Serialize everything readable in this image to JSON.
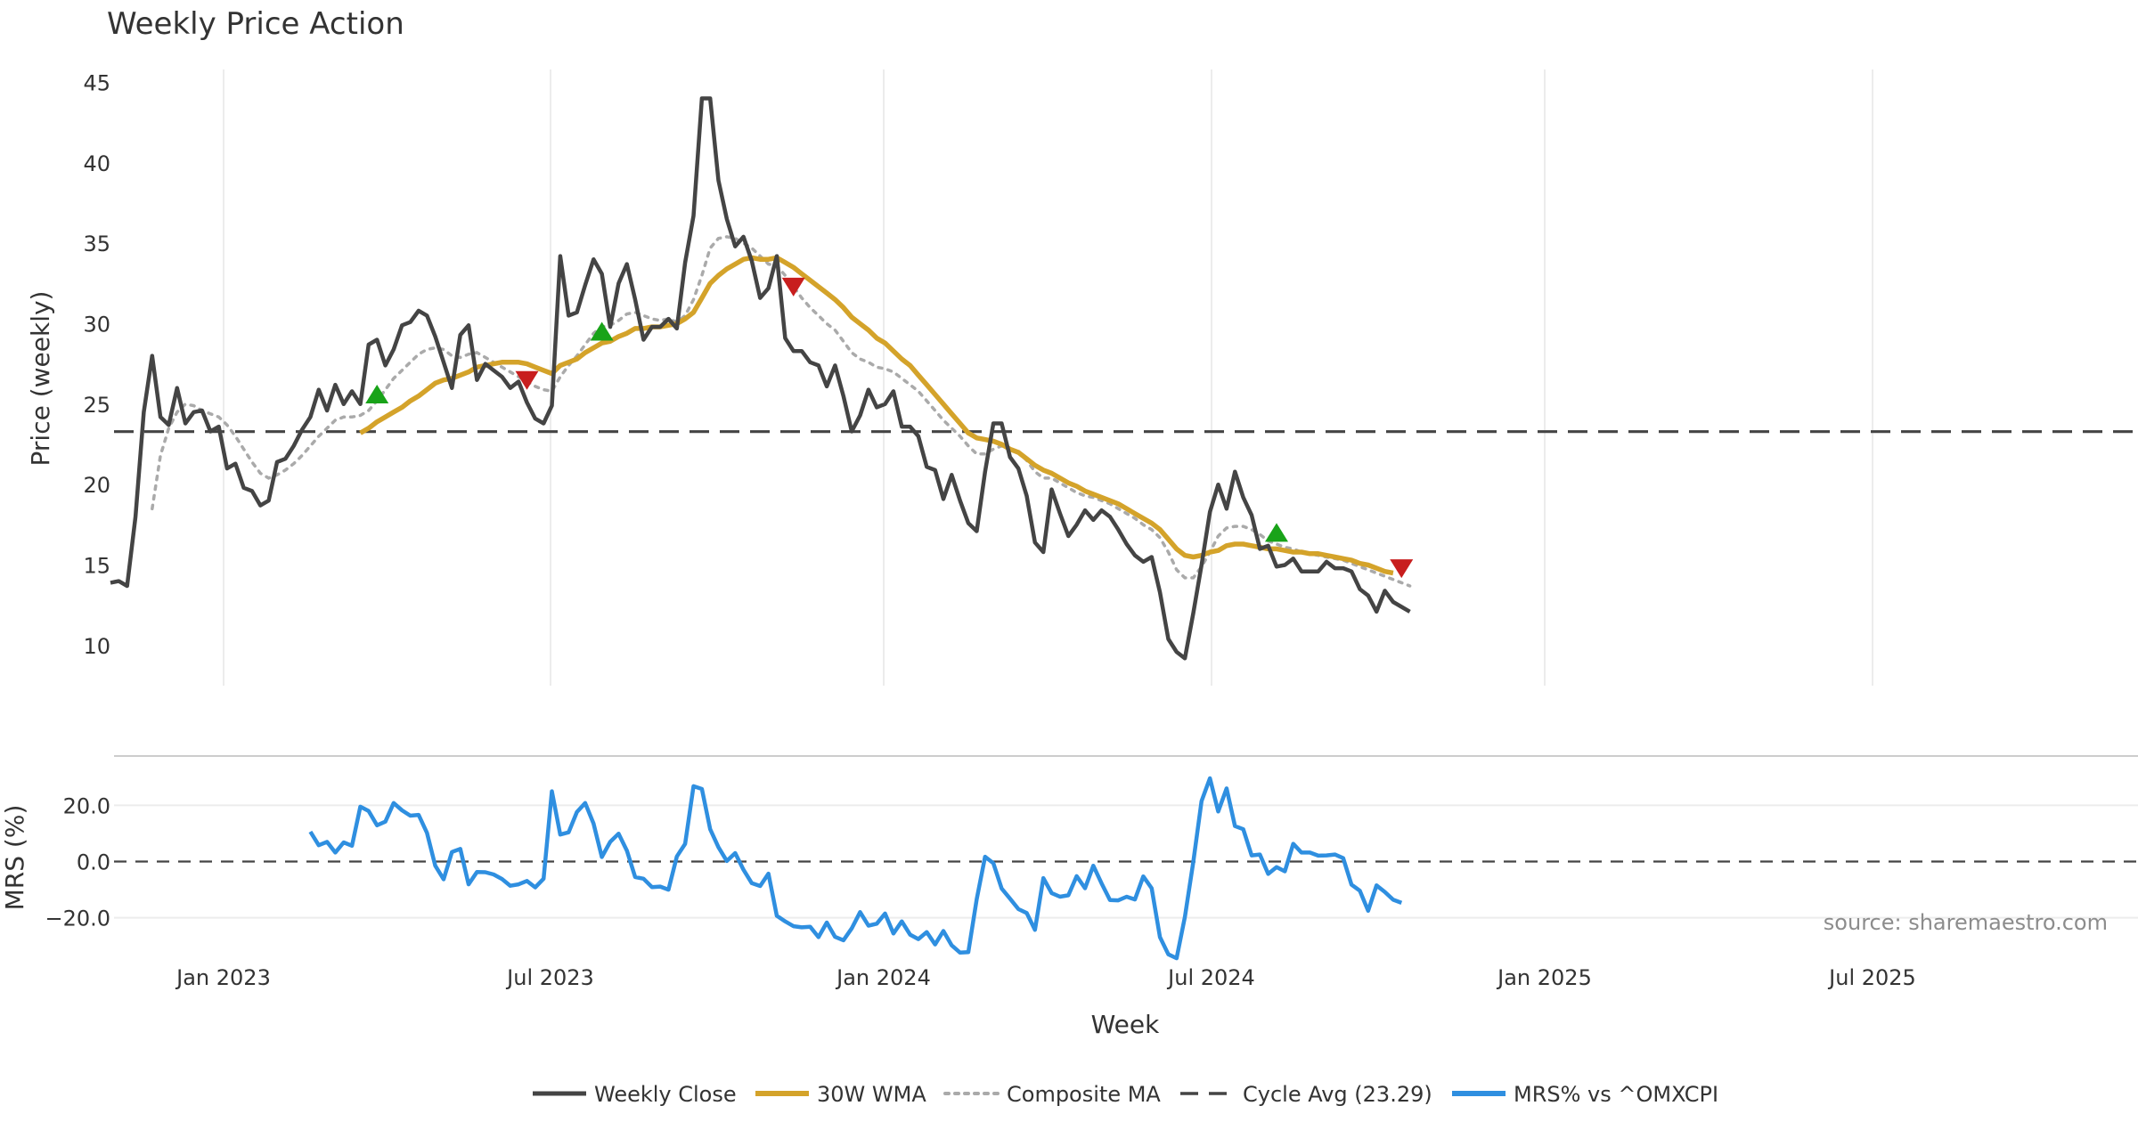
{
  "chart_data": {
    "type": "line",
    "title": "Weekly Price Action",
    "xlabel": "Week",
    "source": "source: sharemaestro.com",
    "x_ticks": [
      "Jan 2023",
      "Jul 2023",
      "Jan 2024",
      "Jul 2024",
      "Jan 2025",
      "Jul 2025"
    ],
    "price_panel": {
      "ylabel": "Price (weekly)",
      "yticks": [
        10,
        15,
        20,
        25,
        30,
        35,
        40,
        45
      ],
      "ylim": [
        7.5,
        45.8
      ],
      "cycle_avg": 23.29,
      "weekly_close": [
        13.9,
        14.0,
        13.7,
        18.0,
        24.5,
        28.0,
        24.2,
        23.7,
        26.0,
        23.8,
        24.5,
        24.6,
        23.3,
        23.6,
        21.0,
        21.3,
        19.8,
        19.6,
        18.7,
        19.0,
        21.4,
        21.6,
        22.4,
        23.4,
        24.2,
        25.9,
        24.6,
        26.2,
        25.0,
        25.8,
        25.0,
        28.7,
        29.0,
        27.4,
        28.4,
        29.9,
        30.1,
        30.8,
        30.5,
        29.2,
        27.6,
        26.0,
        29.3,
        29.9,
        26.5,
        27.5,
        27.1,
        26.7,
        26.0,
        26.4,
        25.1,
        24.1,
        23.8,
        24.9,
        34.2,
        30.5,
        30.7,
        32.4,
        34.0,
        33.1,
        29.8,
        32.5,
        33.7,
        31.5,
        29.0,
        29.8,
        29.8,
        30.3,
        29.7,
        33.8,
        36.7,
        44.0,
        44.0,
        38.9,
        36.5,
        34.8,
        35.4,
        33.9,
        31.6,
        32.2,
        34.2,
        29.1,
        28.3,
        28.3,
        27.6,
        27.4,
        26.1,
        27.4,
        25.5,
        23.3,
        24.3,
        25.9,
        24.8,
        25.0,
        25.8,
        23.6,
        23.6,
        23.0,
        21.1,
        20.9,
        19.1,
        20.6,
        19.0,
        17.6,
        17.1,
        20.8,
        23.8,
        23.8,
        21.7,
        21.0,
        19.3,
        16.4,
        15.8,
        19.7,
        18.2,
        16.8,
        17.5,
        18.4,
        17.8,
        18.4,
        18.0,
        17.2,
        16.3,
        15.6,
        15.2,
        15.5,
        13.3,
        10.4,
        9.6,
        9.2,
        12.0,
        15.0,
        18.3,
        20.0,
        18.5,
        20.8,
        19.2,
        18.1,
        16.0,
        16.2,
        14.9,
        15.0,
        15.4,
        14.6,
        14.6,
        14.6,
        15.2,
        14.8,
        14.8,
        14.6,
        13.5,
        13.1,
        12.1,
        13.4,
        12.7,
        12.4,
        12.1
      ],
      "wma_30w": [
        null,
        null,
        null,
        null,
        null,
        null,
        null,
        null,
        null,
        null,
        null,
        null,
        null,
        null,
        null,
        null,
        null,
        null,
        null,
        null,
        null,
        null,
        null,
        null,
        null,
        null,
        null,
        null,
        null,
        null,
        23.2,
        23.5,
        23.9,
        24.2,
        24.5,
        24.8,
        25.2,
        25.5,
        25.9,
        26.3,
        26.5,
        26.6,
        26.8,
        27.0,
        27.3,
        27.4,
        27.5,
        27.6,
        27.6,
        27.6,
        27.5,
        27.3,
        27.1,
        26.9,
        27.4,
        27.6,
        27.8,
        28.2,
        28.5,
        28.8,
        28.9,
        29.2,
        29.4,
        29.7,
        29.7,
        29.8,
        29.8,
        29.9,
        30.0,
        30.3,
        30.7,
        31.6,
        32.5,
        33.0,
        33.4,
        33.7,
        34.0,
        34.1,
        34.0,
        34.0,
        34.1,
        33.8,
        33.5,
        33.1,
        32.7,
        32.3,
        31.9,
        31.5,
        31.0,
        30.4,
        30.0,
        29.6,
        29.1,
        28.8,
        28.3,
        27.8,
        27.4,
        26.8,
        26.2,
        25.6,
        25.0,
        24.4,
        23.8,
        23.2,
        22.9,
        22.8,
        22.7,
        22.5,
        22.2,
        22.0,
        21.6,
        21.2,
        20.9,
        20.7,
        20.4,
        20.1,
        19.9,
        19.6,
        19.4,
        19.2,
        19.0,
        18.8,
        18.5,
        18.2,
        17.9,
        17.6,
        17.2,
        16.6,
        16.0,
        15.6,
        15.5,
        15.6,
        15.8,
        15.9,
        16.2,
        16.3,
        16.3,
        16.2,
        16.1,
        16.0,
        16.0,
        15.9,
        15.8,
        15.8,
        15.7,
        15.7,
        15.6,
        15.5,
        15.4,
        15.3,
        15.1,
        15.0,
        14.8,
        14.6,
        14.5
      ],
      "composite_ma": [
        null,
        null,
        null,
        null,
        null,
        18.5,
        21.8,
        23.5,
        24.5,
        25.0,
        24.9,
        24.6,
        24.4,
        24.2,
        23.7,
        23.0,
        22.2,
        21.4,
        20.7,
        20.4,
        20.6,
        20.9,
        21.3,
        21.8,
        22.4,
        23.0,
        23.5,
        24.0,
        24.2,
        24.2,
        24.3,
        24.6,
        25.2,
        25.9,
        26.6,
        27.1,
        27.6,
        28.1,
        28.4,
        28.5,
        28.4,
        28.0,
        27.9,
        28.1,
        28.2,
        27.9,
        27.6,
        27.3,
        27.0,
        26.7,
        26.4,
        26.1,
        25.9,
        25.8,
        26.7,
        27.4,
        28.0,
        28.7,
        29.4,
        29.8,
        29.9,
        30.2,
        30.6,
        30.7,
        30.5,
        30.3,
        30.2,
        30.3,
        30.1,
        30.5,
        31.5,
        33.0,
        34.7,
        35.3,
        35.4,
        35.3,
        35.0,
        34.7,
        34.2,
        33.7,
        33.6,
        33.0,
        32.3,
        31.6,
        31.0,
        30.5,
        30.0,
        29.6,
        28.9,
        28.2,
        27.8,
        27.6,
        27.3,
        27.2,
        27.0,
        26.6,
        26.2,
        25.8,
        25.2,
        24.6,
        24.0,
        23.5,
        23.0,
        22.4,
        21.9,
        21.9,
        22.2,
        22.4,
        22.2,
        22.0,
        21.5,
        20.8,
        20.4,
        20.4,
        20.1,
        19.8,
        19.5,
        19.3,
        19.2,
        19.0,
        18.8,
        18.5,
        18.2,
        17.9,
        17.5,
        17.2,
        16.7,
        15.8,
        14.7,
        14.2,
        14.2,
        14.9,
        15.8,
        16.8,
        17.3,
        17.4,
        17.4,
        17.2,
        16.9,
        16.5,
        16.3,
        16.1,
        16.0,
        15.8,
        15.7,
        15.6,
        15.5,
        15.4,
        15.3,
        15.1,
        14.9,
        14.7,
        14.5,
        14.3,
        14.1,
        13.9,
        13.7
      ],
      "buy_signals": [
        {
          "week": 32,
          "price": 25.6
        },
        {
          "week": 59,
          "price": 29.5
        },
        {
          "week": 140,
          "price": 17.0
        }
      ],
      "sell_signals": [
        {
          "week": 50,
          "price": 26.5
        },
        {
          "week": 82,
          "price": 32.3
        },
        {
          "week": 155,
          "price": 14.8
        }
      ]
    },
    "mrs_panel": {
      "ylabel": "MRS (%)",
      "yticks": [
        -20.0,
        0.0,
        20.0
      ],
      "ytick_labels": [
        "−20.0",
        "0.0",
        "20.0"
      ],
      "ylim": [
        -35,
        35
      ],
      "zero_line": 0,
      "series_name": "MRS% vs ^OMXCPI",
      "values": [
        null,
        null,
        null,
        null,
        null,
        null,
        null,
        null,
        null,
        null,
        null,
        null,
        null,
        null,
        null,
        null,
        null,
        null,
        null,
        null,
        null,
        null,
        null,
        null,
        10.6,
        5.8,
        7.0,
        3.2,
        6.8,
        5.6,
        19.5,
        18.0,
        12.9,
        14.2,
        20.8,
        18.2,
        16.3,
        16.6,
        10.2,
        -1.5,
        -6.3,
        3.4,
        4.5,
        -8.1,
        -3.7,
        -3.8,
        -4.6,
        -6.2,
        -8.6,
        -8.1,
        -6.9,
        -9.2,
        -6.1,
        25.0,
        9.6,
        10.4,
        17.6,
        20.8,
        13.5,
        1.6,
        7.0,
        9.9,
        3.9,
        -5.5,
        -6.1,
        -9.1,
        -8.9,
        -10.0,
        1.8,
        6.3,
        26.8,
        25.8,
        11.5,
        5.1,
        0.2,
        3.0,
        -2.9,
        -7.7,
        -8.7,
        -4.3,
        -19.3,
        -21.3,
        -23.0,
        -23.4,
        -23.2,
        -26.9,
        -21.7,
        -26.8,
        -28.0,
        -23.8,
        -18.0,
        -22.8,
        -22.1,
        -18.5,
        -25.6,
        -21.3,
        -26.0,
        -27.6,
        -25.1,
        -29.5,
        -24.7,
        -29.8,
        -32.4,
        -32.2,
        -13.4,
        1.7,
        -0.6,
        -9.6,
        -13.2,
        -16.9,
        -18.3,
        -24.3,
        -5.9,
        -11.2,
        -12.5,
        -12.0,
        -5.2,
        -9.5,
        -1.5,
        -7.8,
        -13.7,
        -13.8,
        -12.5,
        -13.5,
        -5.3,
        -9.5,
        -26.9,
        -33.0,
        -34.4,
        -19.7,
        -0.2,
        21.5,
        29.6,
        17.8,
        26.0,
        12.6,
        11.5,
        2.2,
        2.5,
        -4.4,
        -2.0,
        -3.5,
        6.3,
        3.2,
        3.2,
        2.1,
        2.2,
        2.5,
        1.2,
        -8.2,
        -10.4,
        -17.5,
        -8.5,
        -10.8,
        -13.6,
        -14.7
      ]
    },
    "legend": [
      {
        "label": "Weekly Close",
        "color": "#444444",
        "style": "solid"
      },
      {
        "label": "30W WMA",
        "color": "#d4a32a",
        "style": "solid"
      },
      {
        "label": "Composite MA",
        "color": "#aaaaaa",
        "style": "dotted"
      },
      {
        "label": "Cycle Avg (23.29)",
        "color": "#444444",
        "style": "dashed"
      },
      {
        "label": "MRS% vs ^OMXCPI",
        "color": "#2f8fe0",
        "style": "solid"
      }
    ],
    "colors": {
      "close": "#444444",
      "wma": "#d4a32a",
      "composite": "#aaaaaa",
      "cycle": "#444444",
      "mrs": "#2f8fe0",
      "buy": "#19a319",
      "sell": "#c81e1e",
      "grid": "#ececec"
    }
  }
}
